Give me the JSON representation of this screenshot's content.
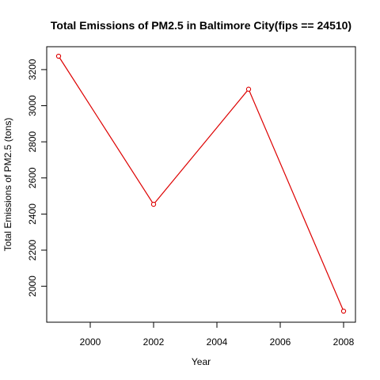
{
  "chart_data": {
    "type": "line",
    "title": "Total Emissions of PM2.5 in Baltimore City(fips == 24510)",
    "xlabel": "Year",
    "ylabel": "Total Emissions of PM2.5 (tons)",
    "x": [
      1999,
      2002,
      2005,
      2008
    ],
    "series": [
      {
        "values": [
          3274.18,
          2453.92,
          3091.35,
          1862.28
        ]
      }
    ],
    "xlim": [
      1999,
      2008
    ],
    "ylim": [
      1862.28,
      3274.18
    ],
    "xticks": [
      2000,
      2002,
      2004,
      2006,
      2008
    ],
    "yticks": [
      2000,
      2200,
      2400,
      2600,
      2800,
      3000,
      3200
    ],
    "xtick_labels": [
      "2000",
      "2002",
      "2004",
      "2006",
      "2008"
    ],
    "ytick_labels": [
      "2000",
      "2200",
      "2400",
      "2600",
      "2800",
      "3000",
      "3200"
    ],
    "grid": false,
    "colors": {
      "line": "#dd0000",
      "points": "#dd0000",
      "axes": "#000000"
    }
  }
}
